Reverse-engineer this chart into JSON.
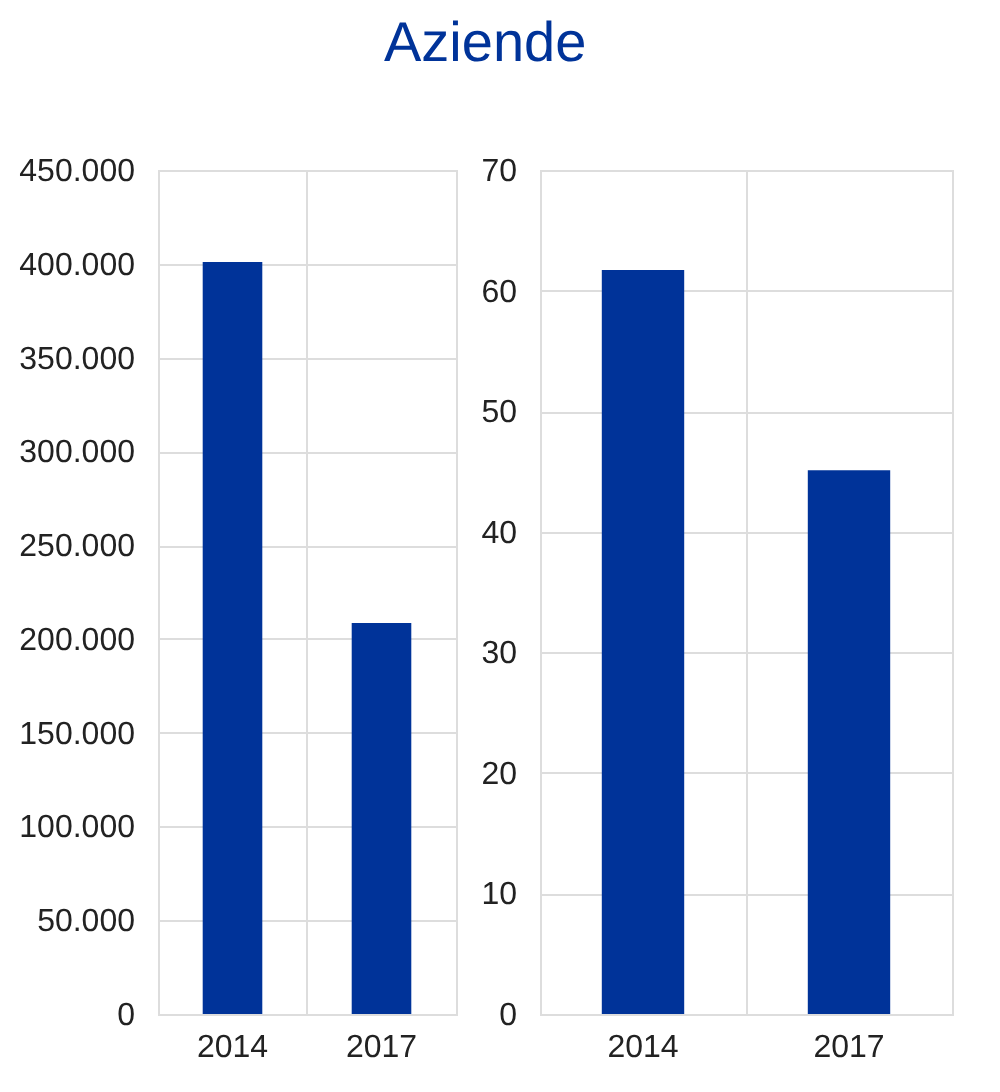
{
  "chart_data": [
    {
      "type": "bar",
      "title": "Aziende",
      "categories": [
        "2014",
        "2017"
      ],
      "values": [
        401000,
        208500
      ],
      "color": "#003399",
      "ylim": [
        0,
        450000
      ],
      "yticks": [
        {
          "value": 0,
          "label": "0"
        },
        {
          "value": 50000,
          "label": "50.000"
        },
        {
          "value": 100000,
          "label": "100.000"
        },
        {
          "value": 150000,
          "label": "150.000"
        },
        {
          "value": 200000,
          "label": "200.000"
        },
        {
          "value": 250000,
          "label": "250.000"
        },
        {
          "value": 300000,
          "label": "300.000"
        },
        {
          "value": 350000,
          "label": "350.000"
        },
        {
          "value": 400000,
          "label": "400.000"
        },
        {
          "value": 450000,
          "label": "450.000"
        }
      ],
      "grid": true
    },
    {
      "type": "bar",
      "categories": [
        "2014",
        "2017"
      ],
      "values": [
        61.7,
        45.1
      ],
      "color": "#003399",
      "ylim": [
        0,
        70
      ],
      "yticks": [
        0,
        10,
        20,
        30,
        40,
        50,
        60,
        70
      ],
      "grid": true
    }
  ]
}
